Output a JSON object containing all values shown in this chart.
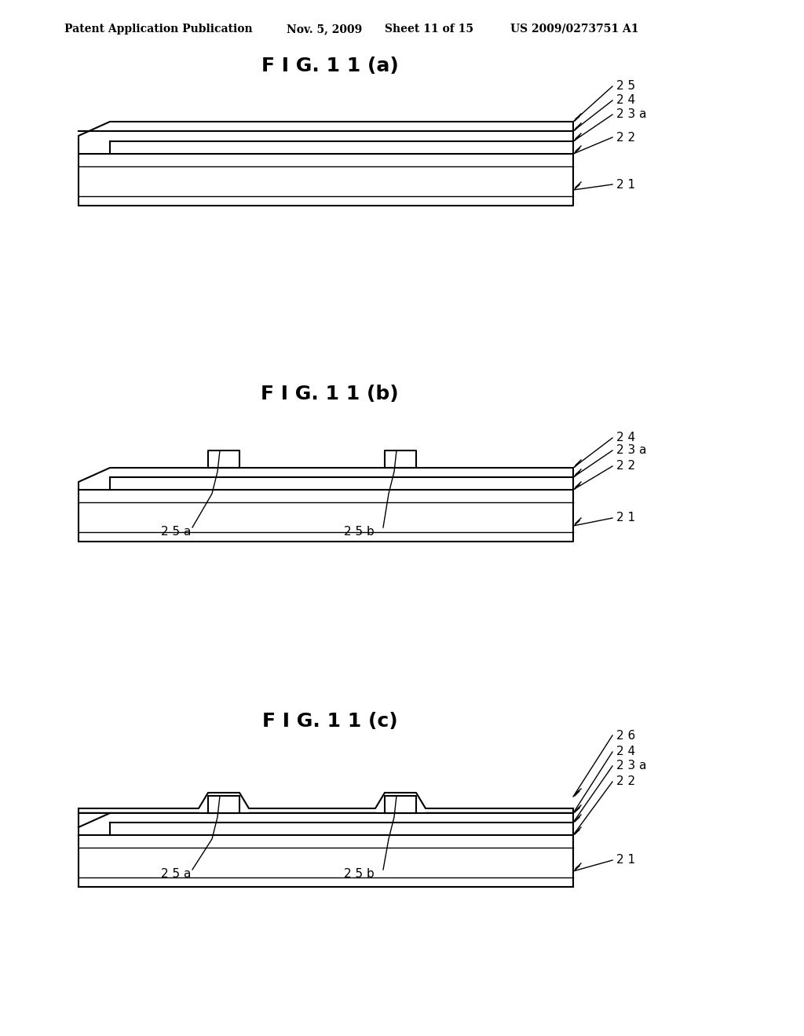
{
  "bg_color": "#ffffff",
  "line_color": "#000000",
  "header_text": "Patent Application Publication",
  "header_date": "Nov. 5, 2009",
  "header_sheet": "Sheet 11 of 15",
  "header_patent": "US 2009/0273751 A1",
  "fig_a_title": "F I G. 1 1 (a)",
  "fig_b_title": "F I G. 1 1 (b)",
  "fig_c_title": "F I G. 1 1 (c)",
  "label_fontsize": 11,
  "title_fontsize": 18,
  "header_fontsize": 10,
  "lw": 1.5,
  "lw_thin": 1.0
}
